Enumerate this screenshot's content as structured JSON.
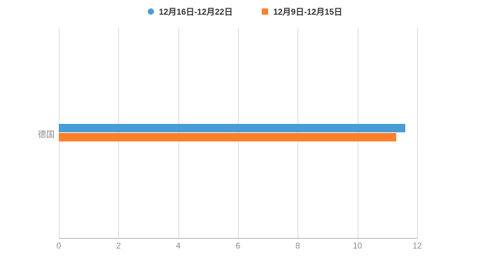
{
  "legend": {
    "items": [
      {
        "label": "12月16日-12月22日",
        "color": "#4a9cd6",
        "marker": "circle"
      },
      {
        "label": "12月9日-12月15日",
        "color": "#ff7f2b",
        "marker": "square"
      }
    ]
  },
  "chart_data": {
    "type": "bar",
    "orientation": "horizontal",
    "title": "",
    "xlabel": "",
    "ylabel": "",
    "categories": [
      "德国"
    ],
    "series": [
      {
        "name": "12月16日-12月22日",
        "values": [
          11.6
        ],
        "color": "#4a9cd6"
      },
      {
        "name": "12月9日-12月15日",
        "values": [
          11.3
        ],
        "color": "#ff7f2b"
      }
    ],
    "xlim": [
      0,
      12
    ],
    "xticks": [
      0,
      2,
      4,
      6,
      8,
      10,
      12
    ],
    "grid": true,
    "legend_position": "top",
    "colors": {
      "axis_line": "#b0b0b0",
      "gridline": "#d9d9d9",
      "tick_text": "#8c8c8c"
    }
  }
}
